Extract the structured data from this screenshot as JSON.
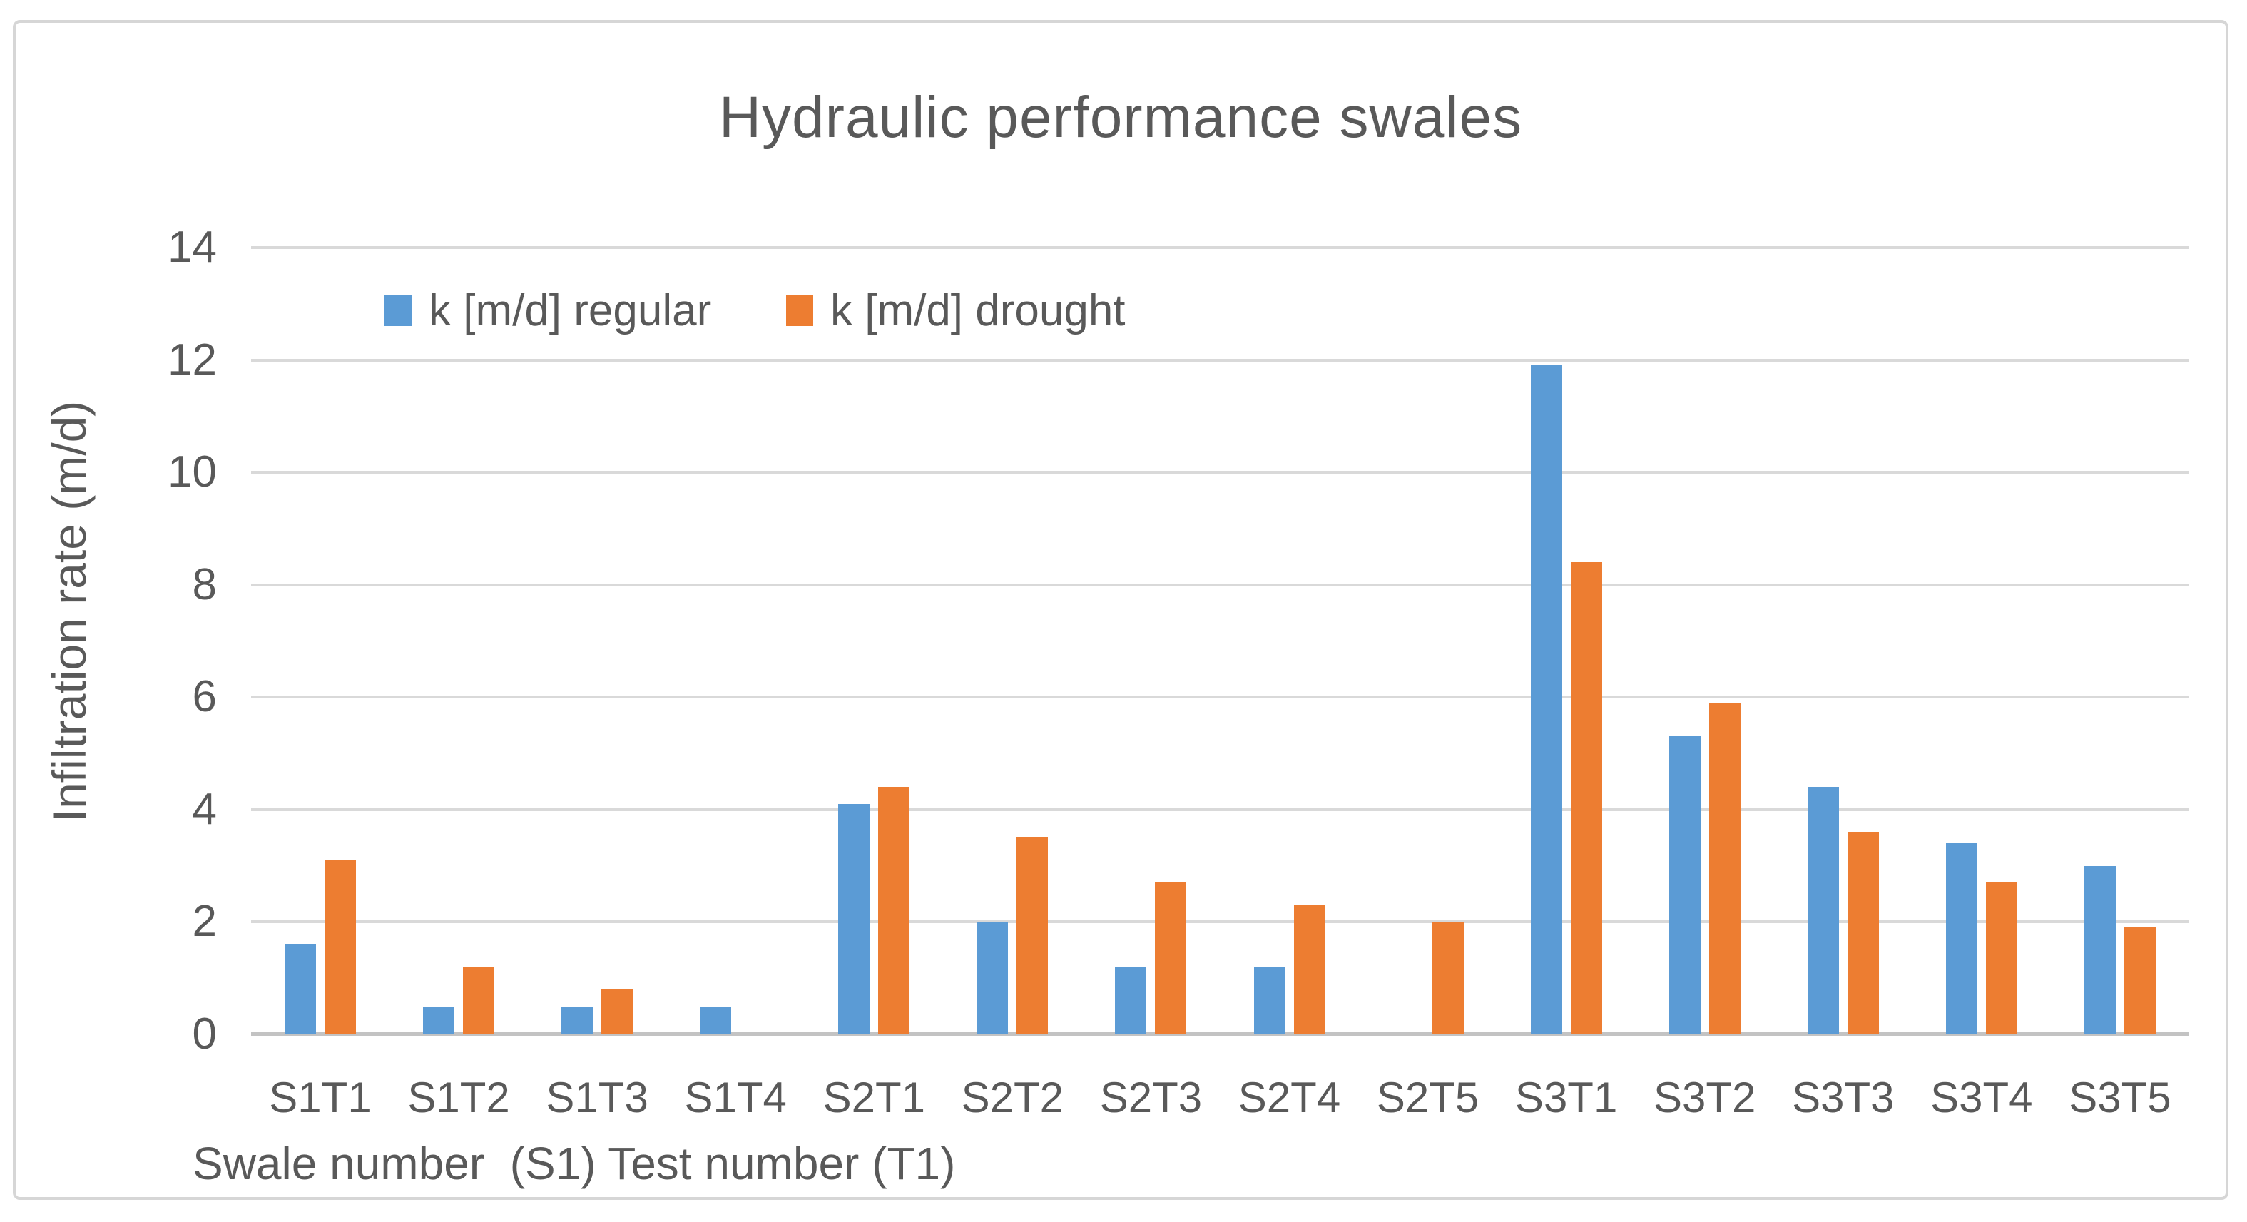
{
  "chart_data": {
    "type": "bar",
    "title": "Hydraulic performance swales",
    "categories": [
      "S1T1",
      "S1T2",
      "S1T3",
      "S1T4",
      "S2T1",
      "S2T2",
      "S2T3",
      "S2T4",
      "S2T5",
      "S3T1",
      "S3T2",
      "S3T3",
      "S3T4",
      "S3T5"
    ],
    "series": [
      {
        "name": "k [m/d] regular",
        "color": "#5B9BD5",
        "values": [
          1.6,
          0.5,
          0.5,
          0.5,
          4.1,
          2.0,
          1.2,
          1.2,
          0,
          11.9,
          5.3,
          4.4,
          3.4,
          3.0
        ]
      },
      {
        "name": "k [m/d] drought",
        "color": "#ED7D31",
        "values": [
          3.1,
          1.2,
          0.8,
          0,
          4.4,
          3.5,
          2.7,
          2.3,
          2.0,
          8.4,
          5.9,
          3.6,
          2.7,
          1.9
        ]
      }
    ],
    "xlabel": "Swale number  (S1) Test number (T1)",
    "ylabel": "Infiltration rate (m/d)",
    "ylim": [
      0,
      14
    ],
    "yticks": [
      0,
      2,
      4,
      6,
      8,
      10,
      12,
      14
    ],
    "grid": "horizontal",
    "legend_position": "inside-top-left",
    "colors": {
      "text": "#595959",
      "gridline": "#d9d9d9",
      "axis_line": "#c3c3c3",
      "frame_border": "#d6d6d6",
      "background": "#ffffff"
    }
  }
}
